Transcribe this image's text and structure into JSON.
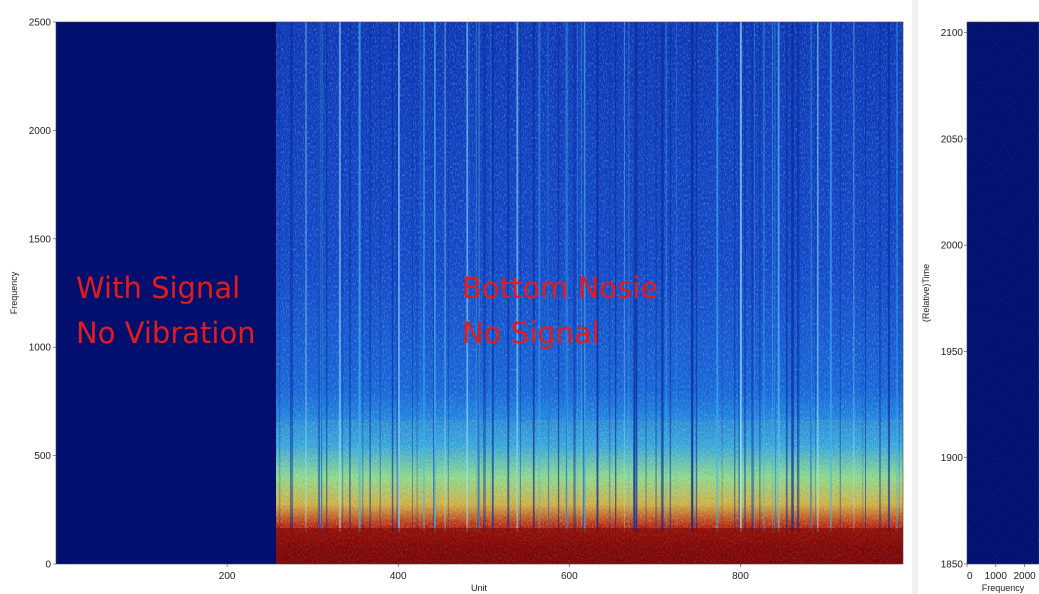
{
  "chart_data": [
    {
      "type": "heatmap",
      "title": "",
      "xlabel": "Unit",
      "ylabel": "Frequency",
      "xlim": [
        0,
        990
      ],
      "ylim": [
        0,
        2500
      ],
      "x_ticks": [
        200,
        400,
        600,
        800
      ],
      "y_ticks": [
        0,
        500,
        1000,
        1500,
        2000,
        2500
      ],
      "colormap": "jet",
      "colors": {
        "low": "#00007f",
        "mid": "#7fff7f",
        "high": "#7f0000"
      },
      "regions": [
        {
          "x_range": [
            0,
            258
          ],
          "level": "low"
        },
        {
          "x_range": [
            258,
            990
          ],
          "level": "noise"
        }
      ],
      "annotations": [
        {
          "lines": [
            "With Signal",
            "No Vibration"
          ],
          "x": 20,
          "y": 1300
        },
        {
          "lines": [
            "Bottom Nosie",
            "No Signal"
          ],
          "x": 470,
          "y": 1300
        }
      ]
    },
    {
      "type": "heatmap",
      "title": "",
      "xlabel": "Frequency",
      "ylabel": "(Relative)Time",
      "xlim": [
        0,
        2500
      ],
      "ylim": [
        1850,
        2105
      ],
      "x_ticks": [
        0,
        1000,
        2000
      ],
      "y_ticks": [
        1850,
        1900,
        1950,
        2000,
        2050,
        2100
      ],
      "colormap": "jet",
      "level": "low"
    }
  ]
}
